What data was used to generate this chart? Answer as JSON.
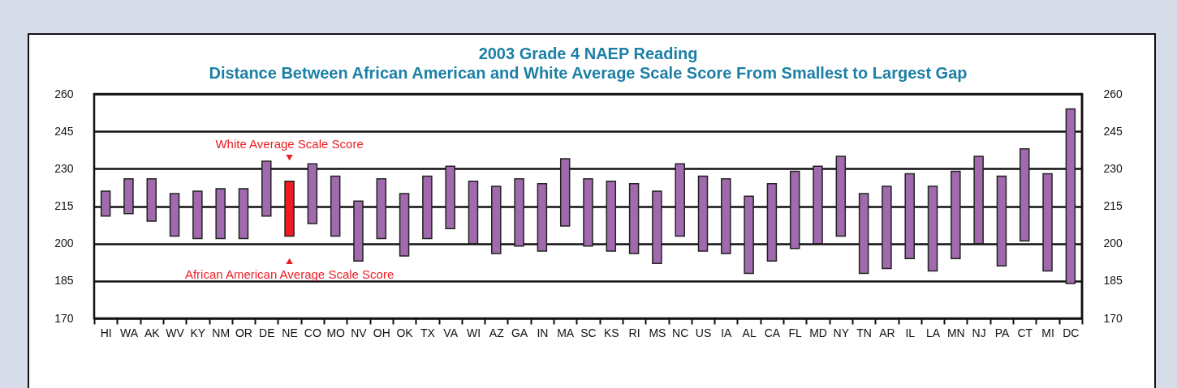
{
  "chart_data": {
    "type": "bar",
    "title": "2003 Grade 4 NAEP Reading",
    "subtitle": "Distance Between African American and White Average Scale Score From Smallest to Largest Gap",
    "categories": [
      "HI",
      "WA",
      "AK",
      "WV",
      "KY",
      "NM",
      "OR",
      "DE",
      "NE",
      "CO",
      "MO",
      "NV",
      "OH",
      "OK",
      "TX",
      "VA",
      "WI",
      "AZ",
      "GA",
      "IN",
      "MA",
      "SC",
      "KS",
      "RI",
      "MS",
      "NC",
      "US",
      "IA",
      "AL",
      "CA",
      "FL",
      "MD",
      "NY",
      "TN",
      "AR",
      "IL",
      "LA",
      "MN",
      "NJ",
      "PA",
      "CT",
      "MI",
      "DC"
    ],
    "base": [
      211,
      212,
      209,
      203,
      202,
      202,
      202,
      211,
      203,
      208,
      203,
      193,
      202,
      195,
      202,
      206,
      200,
      196,
      199,
      197,
      207,
      199,
      197,
      196,
      192,
      203,
      197,
      196,
      188,
      193,
      198,
      200,
      203,
      188,
      190,
      194,
      189,
      194,
      200,
      191,
      201,
      189,
      184
    ],
    "values": [
      10,
      14,
      17,
      17,
      19,
      20,
      20,
      22,
      22,
      24,
      24,
      24,
      24,
      25,
      25,
      25,
      25,
      27,
      27,
      27,
      27,
      27,
      28,
      28,
      29,
      29,
      30,
      30,
      31,
      31,
      31,
      31,
      32,
      32,
      33,
      34,
      34,
      35,
      35,
      36,
      37,
      39,
      70
    ],
    "colors": [
      "#a06aad",
      "#a06aad",
      "#a06aad",
      "#a06aad",
      "#a06aad",
      "#a06aad",
      "#a06aad",
      "#a06aad",
      "#ed1c24",
      "#a06aad",
      "#a06aad",
      "#a06aad",
      "#a06aad",
      "#a06aad",
      "#a06aad",
      "#a06aad",
      "#a06aad",
      "#a06aad",
      "#a06aad",
      "#a06aad",
      "#a06aad",
      "#a06aad",
      "#a06aad",
      "#a06aad",
      "#a06aad",
      "#a06aad",
      "#a06aad",
      "#a06aad",
      "#a06aad",
      "#a06aad",
      "#a06aad",
      "#a06aad",
      "#a06aad",
      "#a06aad",
      "#a06aad",
      "#a06aad",
      "#a06aad",
      "#a06aad",
      "#a06aad",
      "#a06aad",
      "#a06aad",
      "#a06aad",
      "#a06aad"
    ],
    "ylim": [
      170,
      260
    ],
    "yticks": [
      170,
      185,
      200,
      215,
      230,
      245,
      260
    ],
    "y2lim": [
      170,
      260
    ],
    "y2ticks": [
      170,
      185,
      200,
      215,
      230,
      245,
      260
    ],
    "grid": "y",
    "annotations": [
      "White Average Scale Score",
      "African American Average Scale Score"
    ]
  }
}
